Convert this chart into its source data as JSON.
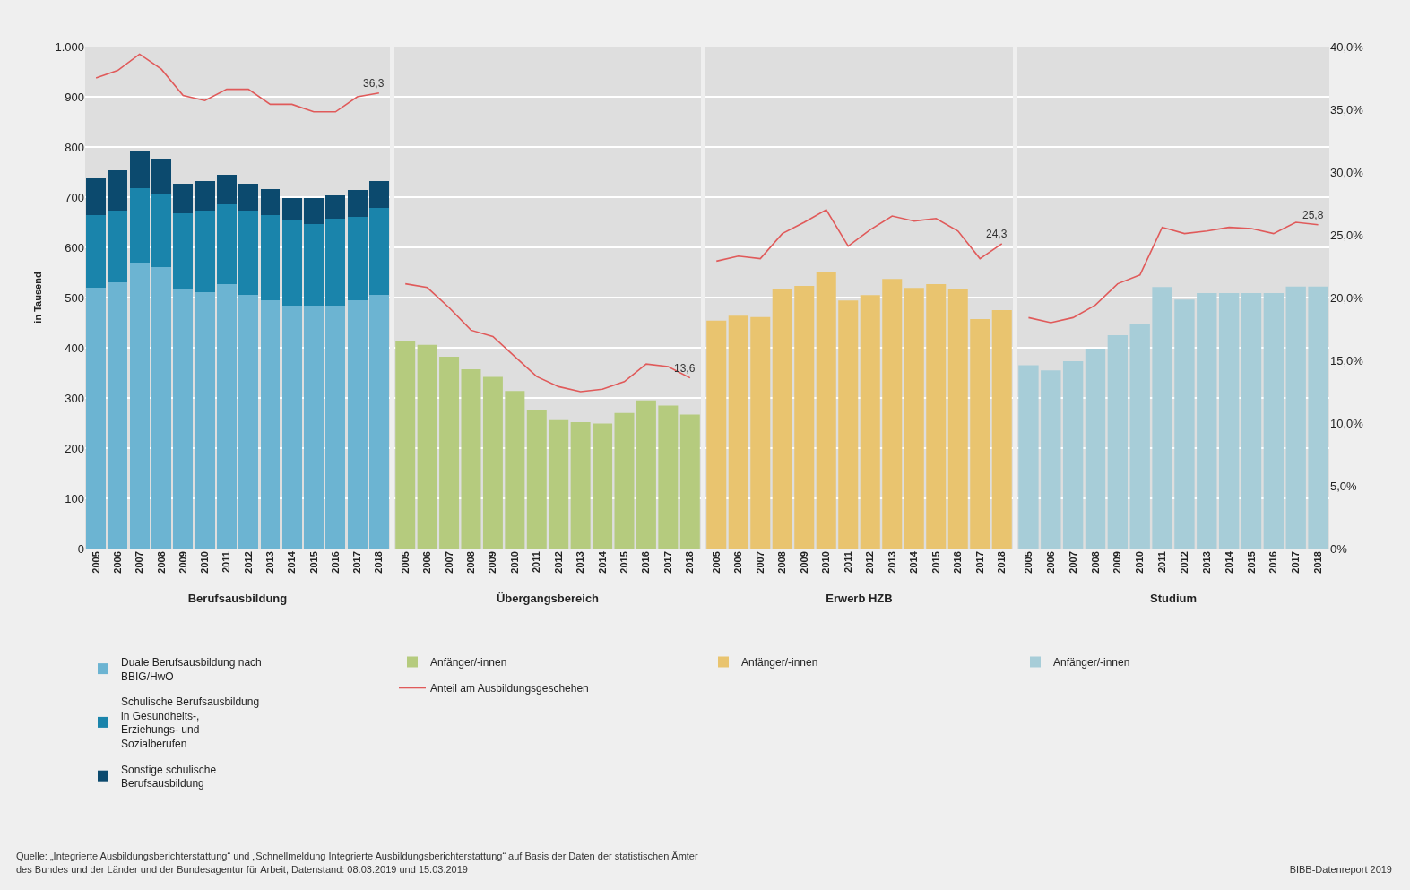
{
  "chart_data": [
    {
      "type": "bar",
      "stacked": true,
      "xlabel": "Berufsausbildung",
      "ylabel": "in Tausend",
      "categories": [
        "2005",
        "2006",
        "2007",
        "2008",
        "2009",
        "2010",
        "2011",
        "2012",
        "2013",
        "2014",
        "2015",
        "2016",
        "2017",
        "2018"
      ],
      "series": [
        {
          "name": "Duale Berufsausbildung nach BBIG/HwO",
          "color": "#6cb4d2",
          "values": [
            520,
            531,
            570,
            560,
            516,
            510,
            527,
            505,
            494,
            484,
            484,
            484,
            494,
            505
          ]
        },
        {
          "name": "Schulische Berufsausbildung in Gesundheits-, Erziehungs- und Sozialberufen",
          "color": "#1a84ab",
          "values": [
            144,
            143,
            147,
            147,
            152,
            164,
            159,
            169,
            170,
            169,
            162,
            173,
            167,
            174
          ]
        },
        {
          "name": "Sonstige schulische Berufsausbildung",
          "color": "#0c4a6e",
          "values": [
            74,
            80,
            76,
            70,
            59,
            58,
            58,
            53,
            52,
            46,
            53,
            47,
            53,
            53
          ]
        },
        {
          "type": "line",
          "axis": "y2",
          "color": "#e05a5a",
          "values": [
            37.5,
            38.1,
            39.4,
            38.2,
            36.1,
            35.7,
            36.6,
            36.6,
            35.4,
            35.4,
            34.8,
            34.8,
            36.0,
            36.3
          ],
          "value_labels": [
            null,
            null,
            null,
            null,
            null,
            null,
            null,
            null,
            null,
            null,
            null,
            null,
            null,
            "36,3"
          ]
        }
      ],
      "ylim": [
        0,
        1000
      ],
      "yticks": [
        0,
        100,
        200,
        300,
        400,
        500,
        600,
        700,
        800,
        900,
        {
          "value": 1000,
          "label": "1.000"
        }
      ],
      "y2lim": [
        0,
        40
      ],
      "grid": "y",
      "legend": "bottom",
      "tick_labels": "xy",
      "annotations": [
        "Quelle: „Integrierte Ausbildungsberichterstattung“ und „Schnellmeldung Integrierte Ausbildungsberichterstattung“ auf Basis der Daten der statistischen Ämter des Bundes und der Länder und der Bundesagentur für Arbeit, Datenstand: 08.03.2019 und 15.03.2019",
        "BIBB-Datenreport 2019"
      ]
    },
    {
      "type": "bar",
      "xlabel": "Übergangsbereich",
      "categories": [
        "2005",
        "2006",
        "2007",
        "2008",
        "2009",
        "2010",
        "2011",
        "2012",
        "2013",
        "2014",
        "2015",
        "2016",
        "2017",
        "2018"
      ],
      "series": [
        {
          "name": "Anfänger/-innen",
          "color": "#b5cb7e",
          "values": [
            414,
            406,
            382,
            357,
            342,
            314,
            277,
            256,
            252,
            249,
            270,
            295,
            285,
            267
          ]
        },
        {
          "type": "line",
          "axis": "y2",
          "name": "Anteil am Ausbildungsgeschehen",
          "color": "#e05a5a",
          "values": [
            21.1,
            20.8,
            19.2,
            17.4,
            16.9,
            15.3,
            13.7,
            12.9,
            12.5,
            12.7,
            13.3,
            14.7,
            14.5,
            13.6
          ],
          "value_labels": [
            null,
            null,
            null,
            null,
            null,
            null,
            null,
            null,
            null,
            null,
            null,
            null,
            null,
            "13,6"
          ]
        }
      ],
      "ylim": [
        0,
        1000
      ],
      "yticks": [
        0,
        100,
        200,
        300,
        400,
        500,
        600,
        700,
        800,
        900,
        1000
      ],
      "y2lim": [
        0,
        40
      ],
      "grid": "y",
      "legend": "bottom",
      "tick_labels": "x"
    },
    {
      "type": "bar",
      "xlabel": "Erwerb HZB",
      "categories": [
        "2005",
        "2006",
        "2007",
        "2008",
        "2009",
        "2010",
        "2011",
        "2012",
        "2013",
        "2014",
        "2015",
        "2016",
        "2017",
        "2018"
      ],
      "series": [
        {
          "name": "Anfänger/-innen",
          "color": "#e9c46f",
          "values": [
            454,
            464,
            461,
            516,
            523,
            551,
            494,
            505,
            537,
            519,
            527,
            516,
            457,
            475
          ]
        },
        {
          "type": "line",
          "axis": "y2",
          "color": "#e05a5a",
          "values": [
            22.9,
            23.3,
            23.1,
            25.1,
            26.0,
            27.0,
            24.1,
            25.4,
            26.5,
            26.1,
            26.3,
            25.3,
            23.1,
            24.3
          ],
          "value_labels": [
            null,
            null,
            null,
            null,
            null,
            null,
            null,
            null,
            null,
            null,
            null,
            null,
            null,
            "24,3"
          ]
        }
      ],
      "ylim": [
        0,
        1000
      ],
      "yticks": [
        0,
        100,
        200,
        300,
        400,
        500,
        600,
        700,
        800,
        900,
        1000
      ],
      "y2lim": [
        0,
        40
      ],
      "grid": "y",
      "legend": "bottom",
      "tick_labels": "x"
    },
    {
      "type": "bar",
      "xlabel": "Studium",
      "categories": [
        "2005",
        "2006",
        "2007",
        "2008",
        "2009",
        "2010",
        "2011",
        "2012",
        "2013",
        "2014",
        "2015",
        "2016",
        "2017",
        "2018"
      ],
      "series": [
        {
          "name": "Anfänger/-innen",
          "color": "#a7cdd8",
          "values": [
            365,
            355,
            373,
            398,
            425,
            447,
            521,
            496,
            509,
            509,
            509,
            509,
            522,
            522
          ]
        },
        {
          "type": "line",
          "axis": "y2",
          "color": "#e05a5a",
          "values": [
            18.4,
            18.0,
            18.4,
            19.4,
            21.1,
            21.8,
            25.6,
            25.1,
            25.3,
            25.6,
            25.5,
            25.1,
            26.0,
            25.8
          ],
          "value_labels": [
            null,
            null,
            null,
            null,
            null,
            null,
            null,
            null,
            null,
            null,
            null,
            null,
            null,
            "25,8"
          ]
        }
      ],
      "ylim": [
        0,
        1000
      ],
      "y2lim": [
        0,
        40
      ],
      "y2ticks": [
        {
          "value": 0,
          "label": "0%"
        },
        {
          "value": 5,
          "label": "5,0%"
        },
        {
          "value": 10,
          "label": "10,0%"
        },
        {
          "value": 15,
          "label": "15,0%"
        },
        {
          "value": 20,
          "label": "20,0%"
        },
        {
          "value": 25,
          "label": "25,0%"
        },
        {
          "value": 30,
          "label": "30,0%"
        },
        {
          "value": 35,
          "label": "35,0%"
        },
        {
          "value": 40,
          "label": "40,0%"
        }
      ],
      "grid": "y",
      "legend": "bottom",
      "tick_labels": "xy2"
    }
  ]
}
